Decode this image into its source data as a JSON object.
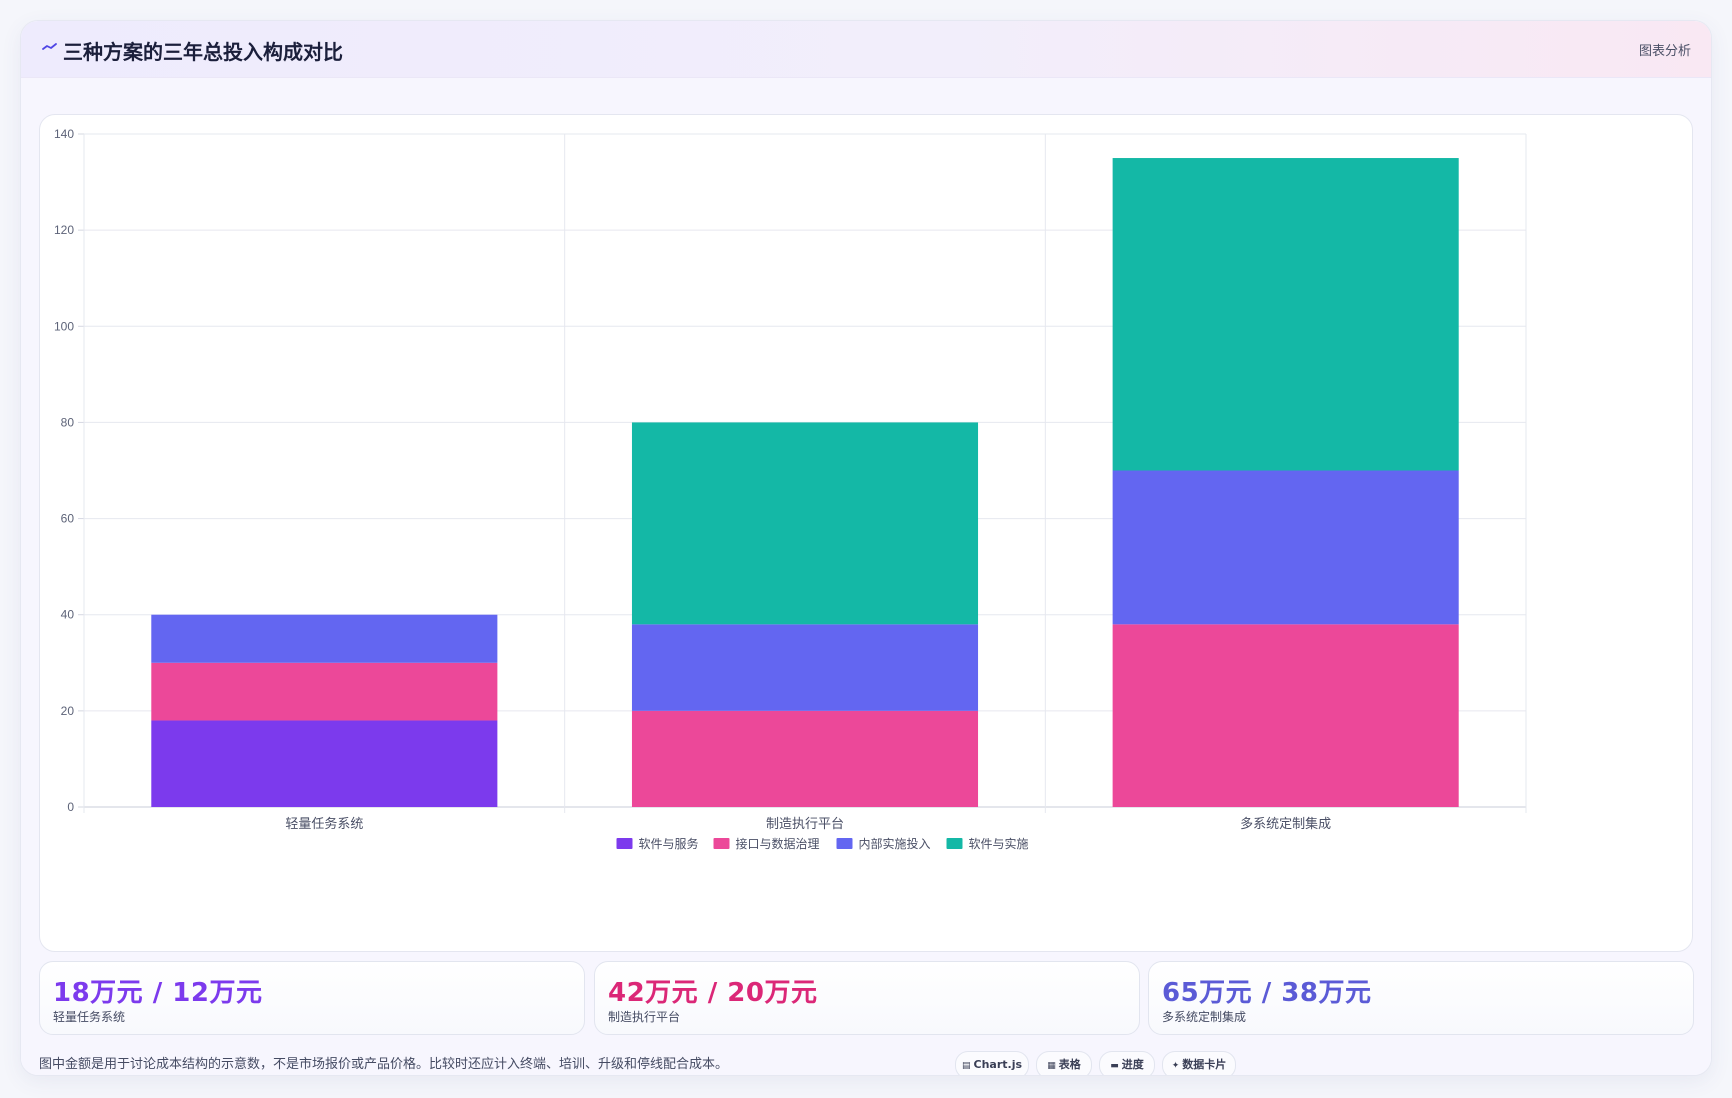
{
  "header": {
    "icon": "trend-line-icon",
    "title": "三种方案的三年总投入构成对比",
    "action_label": "图表分析"
  },
  "chart_data": {
    "type": "bar",
    "stacked": true,
    "categories": [
      "轻量任务系统",
      "制造执行平台",
      "多系统定制集成"
    ],
    "series": [
      {
        "name": "软件与服务",
        "color": "#7c3aed",
        "values": [
          18,
          0,
          0
        ]
      },
      {
        "name": "接口与数据治理",
        "color": "#ec4899",
        "values": [
          12,
          20,
          38
        ]
      },
      {
        "name": "内部实施投入",
        "color": "#6366f1",
        "values": [
          10,
          18,
          32
        ]
      },
      {
        "name": "软件与实施",
        "color": "#14b8a6",
        "values": [
          0,
          42,
          65
        ]
      }
    ],
    "ylim": [
      0,
      140
    ],
    "yticks": [
      0,
      20,
      40,
      60,
      80,
      100,
      120,
      140
    ],
    "grid": true,
    "legend_position": "bottom",
    "title": "",
    "xlabel": "",
    "ylabel": ""
  },
  "stats": [
    {
      "value": "18万元 / 12万元",
      "label": "轻量任务系统",
      "color": "#7c3aed"
    },
    {
      "value": "42万元 / 20万元",
      "label": "制造执行平台",
      "color": "#db2777"
    },
    {
      "value": "65万元 / 38万元",
      "label": "多系统定制集成",
      "color": "#5b5bd6"
    }
  ],
  "footnote": "图中金额是用于讨论成本结构的示意数，不是市场报价或产品价格。比较时还应计入终端、培训、升级和停线配合成本。",
  "tags": [
    {
      "glyph": "▤",
      "label": "Chart.js"
    },
    {
      "glyph": "▦",
      "label": "表格"
    },
    {
      "glyph": "▬",
      "label": "进度"
    },
    {
      "glyph": "✦",
      "label": "数据卡片"
    }
  ]
}
